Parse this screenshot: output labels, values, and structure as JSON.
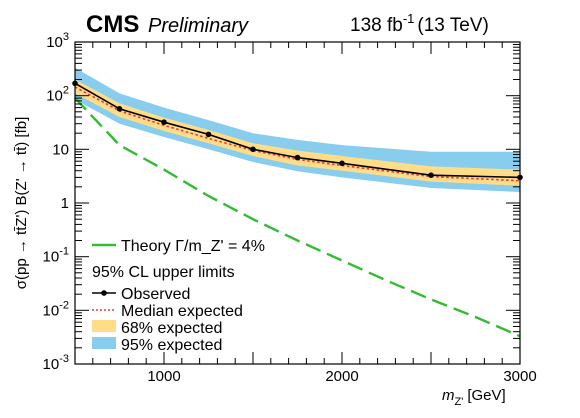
{
  "header": {
    "experiment": "CMS",
    "status": "Preliminary",
    "lumi": "138 fb",
    "lumi_exp": "-1",
    "energy": "(13 TeV)"
  },
  "chart_data": {
    "type": "line",
    "xlabel": "m",
    "xlabel_sub": "Z'",
    "xlabel_unit": "[GeV]",
    "ylabel": "σ(pp → tt̄Z') B(Z' → tt̄) [fb]",
    "xlim": [
      500,
      3000
    ],
    "ylim": [
      0.001,
      1000
    ],
    "yscale": "log",
    "x_ticks": [
      1000,
      2000,
      3000
    ],
    "x_tick_labels": [
      "1000",
      "2000",
      "3000"
    ],
    "y_tick_labels": [
      {
        "value": 0.001,
        "base": "10",
        "exp": "-3"
      },
      {
        "value": 0.01,
        "base": "10",
        "exp": "-2"
      },
      {
        "value": 0.1,
        "base": "10",
        "exp": "-1"
      },
      {
        "value": 1,
        "base": "1",
        "exp": ""
      },
      {
        "value": 10,
        "base": "10",
        "exp": ""
      },
      {
        "value": 100,
        "base": "10",
        "exp": "2"
      },
      {
        "value": 1000,
        "base": "10",
        "exp": "3"
      }
    ],
    "grid": false,
    "legend_placement": "bottom-left",
    "legend_title": "95% CL upper limits",
    "x": [
      500,
      750,
      1000,
      1250,
      1500,
      1750,
      2000,
      2500,
      3000
    ],
    "series": [
      {
        "name": "Theory Γ/m_Z' = 4%",
        "color": "#33bb33",
        "style": "dashed",
        "x": [
          500,
          750,
          1000,
          1250,
          1500,
          1750,
          2000,
          2250,
          2500,
          2750,
          3000
        ],
        "values": [
          90,
          12,
          4.2,
          1.35,
          0.5,
          0.2,
          0.085,
          0.036,
          0.016,
          0.0075,
          0.0033
        ]
      },
      {
        "name": "Observed",
        "color": "#000000",
        "style": "solid-markers",
        "values": [
          170,
          57,
          32,
          19,
          10,
          7,
          5.5,
          3.3,
          3.0
        ]
      },
      {
        "name": "Median expected",
        "color": "#ee3333",
        "style": "dotted",
        "values": [
          145,
          52,
          28,
          16,
          9.5,
          6.5,
          5.0,
          3.1,
          2.6
        ]
      },
      {
        "name": "68% expected",
        "color": "#ffdd88",
        "style": "band",
        "low": [
          110,
          40,
          22,
          13,
          7.5,
          5.0,
          4.0,
          2.5,
          2.1
        ],
        "high": [
          200,
          72,
          39,
          23,
          13,
          9.5,
          7.5,
          4.8,
          4.2
        ]
      },
      {
        "name": "95% expected",
        "color": "#88ccee",
        "style": "band",
        "low": [
          85,
          30,
          17,
          10,
          5.8,
          3.9,
          3.0,
          1.9,
          1.6
        ],
        "high": [
          330,
          110,
          60,
          35,
          20,
          15,
          12,
          9.0,
          9.0
        ]
      }
    ]
  }
}
